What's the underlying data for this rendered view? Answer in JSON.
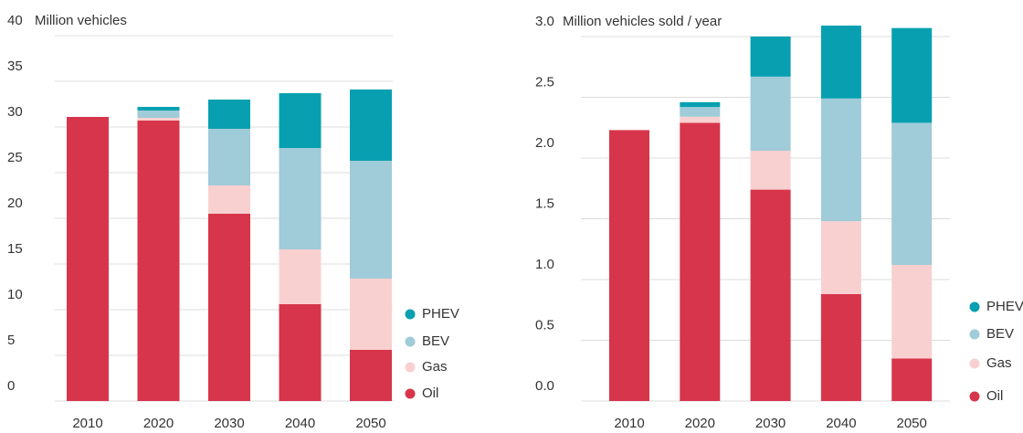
{
  "chart_data": [
    {
      "type": "stacked_bar",
      "ylabel": "Million vehicles",
      "categories": [
        "2010",
        "2020",
        "2030",
        "2040",
        "2050"
      ],
      "series": [
        {
          "name": "Oil",
          "color": "#d7354b",
          "values": [
            31.1,
            30.7,
            20.5,
            10.6,
            5.6
          ]
        },
        {
          "name": "Gas",
          "color": "#f9d0d0",
          "values": [
            0,
            0.3,
            3.1,
            6.0,
            7.8
          ]
        },
        {
          "name": "BEV",
          "color": "#a0cbd8",
          "values": [
            0,
            0.8,
            6.2,
            11.1,
            12.9
          ]
        },
        {
          "name": "PHEV",
          "color": "#08a0b1",
          "values": [
            0,
            0.4,
            3.2,
            6.0,
            7.8
          ]
        }
      ],
      "ylim": [
        0,
        40
      ],
      "yticks": [
        0,
        5,
        10,
        15,
        20,
        25,
        30,
        35,
        40
      ],
      "grid": true
    },
    {
      "type": "stacked_bar",
      "ylabel": "Million vehicles sold / year",
      "categories": [
        "2010",
        "2020",
        "2030",
        "2040",
        "2050"
      ],
      "series": [
        {
          "name": "Oil",
          "color": "#d7354b",
          "values": [
            2.23,
            2.29,
            1.74,
            0.88,
            0.35
          ]
        },
        {
          "name": "Gas",
          "color": "#f9d0d0",
          "values": [
            0,
            0.05,
            0.32,
            0.6,
            0.77
          ]
        },
        {
          "name": "BEV",
          "color": "#a0cbd8",
          "values": [
            0,
            0.08,
            0.61,
            1.01,
            1.17
          ]
        },
        {
          "name": "PHEV",
          "color": "#08a0b1",
          "values": [
            0,
            0.04,
            0.33,
            0.6,
            0.78
          ]
        }
      ],
      "ylim": [
        0,
        3.0
      ],
      "yticks": [
        {
          "value": 0,
          "label": "0.0"
        },
        0.5,
        {
          "value": 1,
          "label": "1.0"
        },
        1.5,
        {
          "value": 2,
          "label": "2.0"
        },
        2.5,
        {
          "value": 3,
          "label": "3.0"
        }
      ],
      "grid": true
    }
  ]
}
